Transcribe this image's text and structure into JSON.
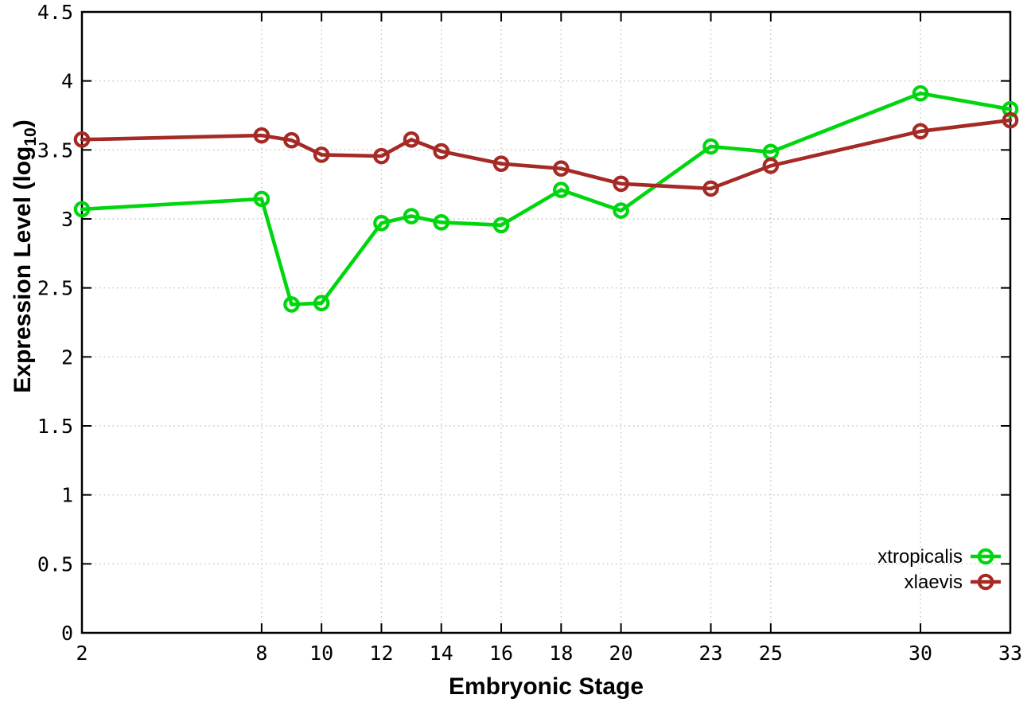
{
  "page": {
    "background": "#ffffff"
  },
  "chart_data": {
    "type": "line",
    "title": "",
    "xlabel": "Embryonic Stage",
    "ylabel": "Expression Level (log10)",
    "ylabel_parts": {
      "prefix": "Expression Level (log",
      "subscript": "10",
      "suffix": ")"
    },
    "xlim": [
      2,
      33
    ],
    "ylim": [
      0,
      4.5
    ],
    "grid": true,
    "grid_style": "dotted",
    "grid_color": "#c4c4c4",
    "axis_color": "#000000",
    "legend_position": "bottom-right",
    "x": [
      2,
      8,
      9,
      10,
      12,
      13,
      14,
      16,
      18,
      20,
      23,
      25,
      30,
      33
    ],
    "xtick_values": [
      2,
      8,
      10,
      12,
      14,
      16,
      18,
      20,
      23,
      25,
      30,
      33
    ],
    "xtick_labels": [
      "2",
      "8",
      "10",
      "12",
      "14",
      "16",
      "18",
      "20",
      "23",
      "25",
      "30",
      "33"
    ],
    "ytick_values": [
      0,
      0.5,
      1,
      1.5,
      2,
      2.5,
      3,
      3.5,
      4,
      4.5
    ],
    "ytick_labels": [
      "0",
      "0.5",
      "1",
      "1.5",
      "2",
      "2.5",
      "3",
      "3.5",
      "4",
      "4.5"
    ],
    "series": [
      {
        "name": "xtropicalis",
        "color": "#00d60e",
        "marker": "open-circle",
        "values": [
          3.07,
          3.145,
          2.38,
          2.39,
          2.97,
          3.02,
          2.975,
          2.955,
          3.21,
          3.06,
          3.525,
          3.485,
          3.91,
          3.795
        ]
      },
      {
        "name": "xlaevis",
        "color": "#a52a25",
        "marker": "open-circle",
        "values": [
          3.575,
          3.605,
          3.57,
          3.465,
          3.455,
          3.575,
          3.49,
          3.4,
          3.365,
          3.255,
          3.22,
          3.385,
          3.635,
          3.715
        ]
      }
    ]
  }
}
